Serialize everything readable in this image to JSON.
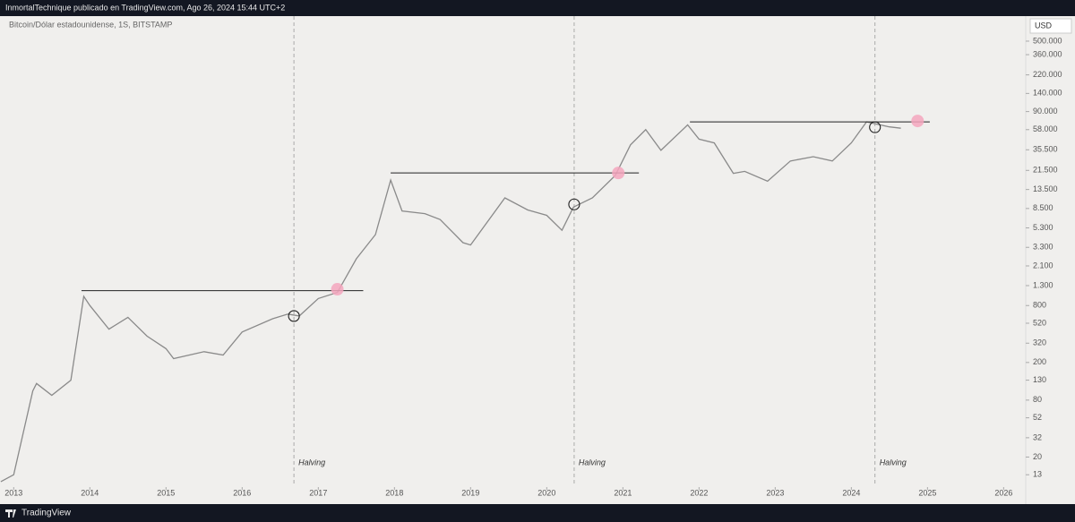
{
  "header": {
    "publisher": "InmortalTechnique publicado en TradingView.com, Ago 26, 2024 15:44 UTC+2"
  },
  "footer": {
    "brand": "TradingView"
  },
  "chart_data": {
    "type": "line",
    "title": "Bitcoin/Dólar estadounidense, 1S, BITSTAMP",
    "currency": "USD",
    "log_scale": true,
    "color": "#8a8a8a",
    "x": [
      2012.83,
      2013.0,
      2013.25,
      2013.3,
      2013.5,
      2013.75,
      2013.92,
      2014.0,
      2014.25,
      2014.5,
      2014.75,
      2015.0,
      2015.1,
      2015.5,
      2015.75,
      2016.0,
      2016.4,
      2016.6,
      2016.75,
      2017.0,
      2017.25,
      2017.5,
      2017.75,
      2017.95,
      2018.1,
      2018.4,
      2018.6,
      2018.9,
      2019.0,
      2019.45,
      2019.75,
      2020.0,
      2020.2,
      2020.35,
      2020.6,
      2020.9,
      2021.1,
      2021.3,
      2021.5,
      2021.85,
      2022.0,
      2022.2,
      2022.45,
      2022.6,
      2022.9,
      2023.2,
      2023.5,
      2023.75,
      2024.0,
      2024.2,
      2024.5,
      2024.65
    ],
    "values": [
      11,
      13,
      100,
      120,
      90,
      130,
      1000,
      800,
      450,
      600,
      380,
      280,
      220,
      260,
      240,
      420,
      580,
      650,
      620,
      950,
      1100,
      2500,
      4500,
      17000,
      8000,
      7500,
      6500,
      3700,
      3500,
      11000,
      8200,
      7200,
      5000,
      8800,
      11000,
      19000,
      40000,
      58000,
      35000,
      65000,
      46000,
      42000,
      20000,
      21000,
      16500,
      27000,
      30000,
      27000,
      42000,
      70000,
      62000,
      60000
    ],
    "xlim": [
      2012.82,
      2026.29
    ],
    "xticks": [
      2013,
      2014,
      2015,
      2016,
      2017,
      2018,
      2019,
      2020,
      2021,
      2022,
      2023,
      2024,
      2025,
      2026
    ],
    "ylim": [
      10.5,
      920000
    ],
    "yticks": [
      {
        "value": 500000,
        "label": "500.000"
      },
      {
        "value": 360000,
        "label": "360.000"
      },
      {
        "value": 220000,
        "label": "220.000"
      },
      {
        "value": 140000,
        "label": "140.000"
      },
      {
        "value": 90000,
        "label": "90.000"
      },
      {
        "value": 58000,
        "label": "58.000"
      },
      {
        "value": 35500,
        "label": "35.500"
      },
      {
        "value": 21500,
        "label": "21.500"
      },
      {
        "value": 13500,
        "label": "13.500"
      },
      {
        "value": 8500,
        "label": "8.500"
      },
      {
        "value": 5300,
        "label": "5.300"
      },
      {
        "value": 3300,
        "label": "3.300"
      },
      {
        "value": 2100,
        "label": "2.100"
      },
      {
        "value": 1300,
        "label": "1.300"
      },
      800,
      520,
      320,
      200,
      130,
      80,
      52,
      32,
      20,
      13
    ],
    "halvings": [
      {
        "x": 2016.68,
        "label": "Halving"
      },
      {
        "x": 2020.36,
        "label": "Halving"
      },
      {
        "x": 2024.31,
        "label": "Halving"
      }
    ],
    "levels": [
      {
        "value": 1150,
        "x_start": 2013.89,
        "x_end": 2017.59
      },
      {
        "value": 20200,
        "x_start": 2017.95,
        "x_end": 2021.21
      },
      {
        "value": 70100,
        "x_start": 2021.88,
        "x_end": 2025.03
      }
    ],
    "markers": [
      {
        "x": 2016.68,
        "value": 620,
        "color": "#222222"
      },
      {
        "x": 2020.36,
        "value": 9400,
        "color": "#222222"
      },
      {
        "x": 2024.31,
        "value": 61500,
        "color": "#222222"
      },
      {
        "x": 2017.25,
        "value": 1190,
        "color": "#f4a6bd"
      },
      {
        "x": 2020.94,
        "value": 20200,
        "color": "#f4a6bd"
      },
      {
        "x": 2024.87,
        "value": 71600,
        "color": "#f4a6bd"
      }
    ]
  }
}
